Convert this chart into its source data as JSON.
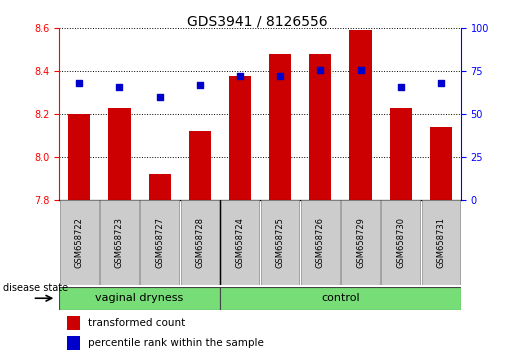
{
  "title": "GDS3941 / 8126556",
  "samples": [
    "GSM658722",
    "GSM658723",
    "GSM658727",
    "GSM658728",
    "GSM658724",
    "GSM658725",
    "GSM658726",
    "GSM658729",
    "GSM658730",
    "GSM658731"
  ],
  "transformed_count": [
    8.2,
    8.23,
    7.92,
    8.12,
    8.38,
    8.48,
    8.48,
    8.59,
    8.23,
    8.14
  ],
  "percentile_rank": [
    68,
    66,
    60,
    67,
    72,
    72,
    76,
    76,
    66,
    68
  ],
  "group_boundary": 4,
  "bar_color": "#CC0000",
  "dot_color": "#0000CC",
  "group_fill": "#77DD77",
  "sample_fill": "#CCCCCC",
  "ylim_left": [
    7.8,
    8.6
  ],
  "ylim_right": [
    0,
    100
  ],
  "yticks_left": [
    7.8,
    8.0,
    8.2,
    8.4,
    8.6
  ],
  "yticks_right": [
    0,
    25,
    50,
    75,
    100
  ],
  "label_transformed": "transformed count",
  "label_percentile": "percentile rank within the sample",
  "group_label": "disease state",
  "vd_label": "vaginal dryness",
  "ctrl_label": "control",
  "bar_width": 0.55,
  "title_fontsize": 10,
  "tick_fontsize": 7,
  "sample_fontsize": 6,
  "group_fontsize": 8,
  "legend_fontsize": 7.5
}
